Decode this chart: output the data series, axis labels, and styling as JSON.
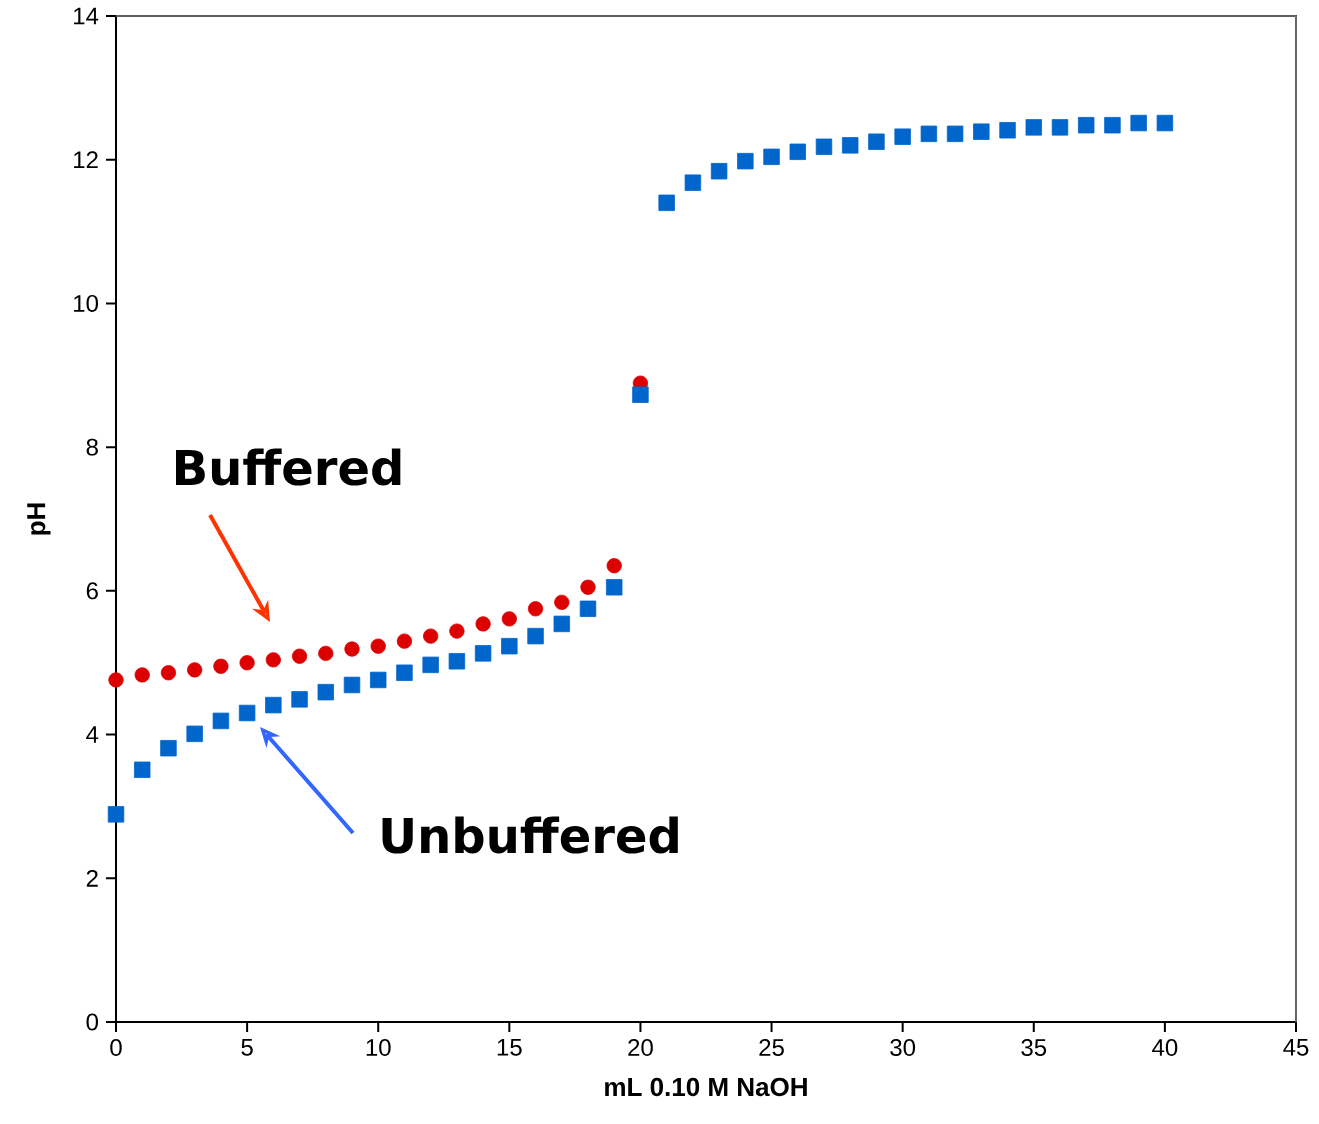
{
  "chart_data": {
    "type": "scatter",
    "xlabel": "mL 0.10 M NaOH",
    "ylabel": "pH",
    "xlim": [
      0,
      45
    ],
    "xticks": [
      0,
      5,
      10,
      15,
      20,
      25,
      30,
      35,
      40,
      45
    ],
    "ylim": [
      0,
      14
    ],
    "yticks": [
      0,
      2,
      4,
      6,
      8,
      10,
      12,
      14
    ],
    "grid": false,
    "series": [
      {
        "color": "#dd0000",
        "marker": "circle",
        "x": [
          0,
          1,
          2,
          3,
          4,
          5,
          6,
          7,
          8,
          9,
          10,
          11,
          12,
          13,
          14,
          15,
          16,
          17,
          18,
          19,
          20
        ],
        "values": [
          4.76,
          4.83,
          4.86,
          4.9,
          4.95,
          5.0,
          5.04,
          5.09,
          5.13,
          5.19,
          5.23,
          5.3,
          5.37,
          5.44,
          5.54,
          5.61,
          5.75,
          5.84,
          6.05,
          6.35,
          8.89
        ]
      },
      {
        "color": "#0066cc",
        "marker": "square",
        "x": [
          0,
          1,
          2,
          3,
          4,
          5,
          6,
          7,
          8,
          9,
          10,
          11,
          12,
          13,
          14,
          15,
          16,
          17,
          18,
          19,
          20,
          21,
          22,
          23,
          24,
          25,
          26,
          27,
          28,
          29,
          30,
          31,
          32,
          33,
          34,
          35,
          36,
          37,
          38,
          39,
          40
        ],
        "values": [
          2.89,
          3.51,
          3.81,
          4.01,
          4.19,
          4.3,
          4.41,
          4.49,
          4.59,
          4.69,
          4.76,
          4.86,
          4.97,
          5.02,
          5.13,
          5.23,
          5.37,
          5.54,
          5.75,
          6.05,
          8.73,
          11.4,
          11.68,
          11.84,
          11.98,
          12.04,
          12.11,
          12.18,
          12.2,
          12.25,
          12.32,
          12.36,
          12.36,
          12.39,
          12.41,
          12.45,
          12.45,
          12.48,
          12.48,
          12.51,
          12.51
        ]
      }
    ],
    "annotations": [
      "Buffered",
      "Unbuffered"
    ]
  }
}
